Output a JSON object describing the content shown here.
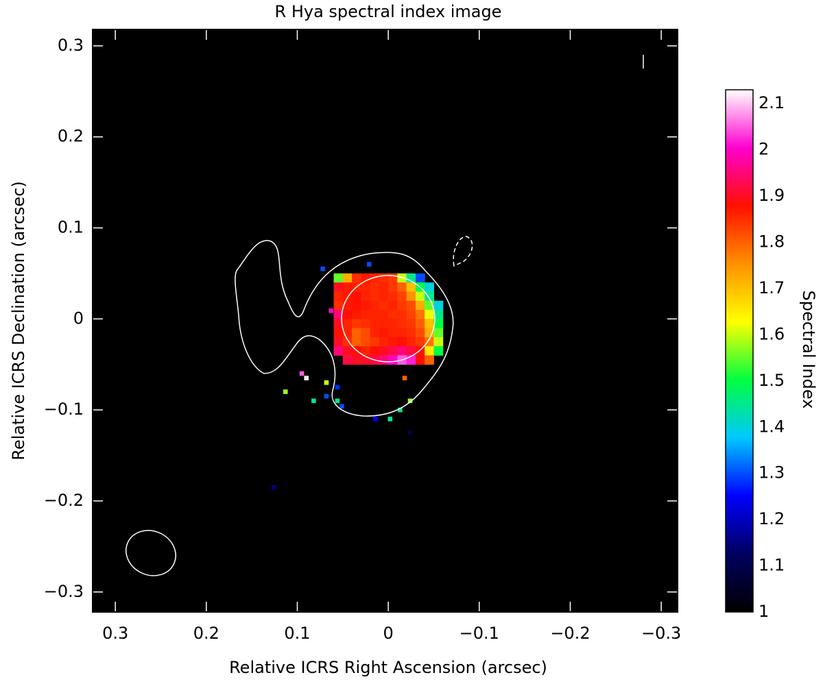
{
  "chart_data": {
    "type": "heatmap",
    "title": "R Hya spectral index image",
    "xlabel": "Relative ICRS Right Ascension (arcsec)",
    "ylabel": "Relative ICRS Declination (arcsec)",
    "colorbar_label": "Spectral Index",
    "xlim": [
      0.325,
      -0.318
    ],
    "ylim": [
      -0.322,
      0.318
    ],
    "xticks": [
      0.3,
      0.2,
      0.1,
      0,
      {
        "value": -0.1,
        "label": "−0.1"
      },
      {
        "value": -0.2,
        "label": "−0.2"
      },
      {
        "value": -0.3,
        "label": "−0.3"
      }
    ],
    "yticks": [
      {
        "value": -0.3,
        "label": "−0.3"
      },
      {
        "value": -0.2,
        "label": "−0.2"
      },
      {
        "value": -0.1,
        "label": "−0.1"
      },
      0,
      0.1,
      0.2,
      0.3
    ],
    "zlim": [
      1,
      2.13
    ],
    "zticks": [
      1,
      1.1,
      1.2,
      1.3,
      1.4,
      1.5,
      1.6,
      1.7,
      1.8,
      1.9,
      2,
      2.1
    ],
    "colors": [
      "#000000",
      "#000060",
      "#0000ff",
      "#00c8ff",
      "#00ff40",
      "#ffff00",
      "#ff9000",
      "#ff1000",
      "#ff00d0",
      "#ffffff"
    ],
    "x": [
      0.055,
      0.045,
      0.035,
      0.025,
      0.015,
      0.005,
      -0.005,
      -0.015,
      -0.025,
      -0.035,
      -0.045,
      -0.055
    ],
    "y": [
      0.045,
      0.035,
      0.025,
      0.015,
      0.005,
      -0.005,
      -0.015,
      -0.025,
      -0.035,
      -0.045
    ],
    "values": [
      [
        1.55,
        1.72,
        1.85,
        1.87,
        1.86,
        1.85,
        1.84,
        1.6,
        1.45,
        1.3,
        null,
        null
      ],
      [
        1.9,
        1.87,
        1.86,
        1.86,
        1.85,
        1.86,
        1.84,
        1.8,
        1.7,
        1.5,
        1.4,
        null
      ],
      [
        1.86,
        1.87,
        1.88,
        1.86,
        1.85,
        1.86,
        1.85,
        1.83,
        1.75,
        1.6,
        1.45,
        null
      ],
      [
        1.85,
        1.87,
        1.88,
        1.87,
        1.86,
        1.85,
        1.86,
        1.84,
        1.82,
        1.72,
        1.55,
        1.4
      ],
      [
        1.95,
        1.88,
        1.87,
        1.86,
        1.86,
        1.86,
        1.85,
        1.85,
        1.83,
        1.78,
        1.62,
        1.45
      ],
      [
        1.9,
        1.86,
        1.84,
        1.85,
        1.86,
        1.86,
        1.86,
        1.85,
        1.84,
        1.8,
        1.7,
        1.5
      ],
      [
        1.88,
        1.86,
        1.8,
        1.82,
        1.86,
        1.87,
        1.86,
        1.86,
        1.85,
        1.82,
        1.72,
        1.55
      ],
      [
        1.9,
        1.85,
        1.8,
        1.82,
        1.84,
        1.86,
        1.87,
        1.88,
        1.86,
        1.84,
        1.78,
        1.6
      ],
      [
        1.95,
        1.9,
        1.88,
        1.86,
        1.88,
        1.9,
        1.92,
        1.95,
        1.92,
        1.88,
        1.65,
        1.5
      ],
      [
        null,
        1.92,
        1.9,
        1.9,
        1.92,
        1.95,
        2.0,
        2.05,
        2.02,
        1.88,
        1.8,
        null
      ]
    ],
    "points": {
      "x": [
        0.095,
        0.09,
        0.068,
        0.113,
        0.082,
        0.068,
        0.056,
        0.056,
        0.051,
        0.014,
        -0.002,
        -0.013,
        -0.024,
        -0.024,
        0.126,
        -0.018,
        0.072,
        0.021,
        0.063
      ],
      "y": [
        -0.06,
        -0.065,
        -0.07,
        -0.08,
        -0.09,
        -0.085,
        -0.075,
        -0.09,
        -0.096,
        -0.11,
        -0.11,
        -0.1,
        -0.09,
        -0.125,
        -0.185,
        -0.065,
        0.055,
        0.06,
        0.009
      ],
      "values": [
        2.05,
        2.12,
        1.6,
        1.58,
        1.45,
        1.3,
        1.28,
        1.45,
        1.3,
        1.25,
        1.45,
        1.45,
        1.58,
        1.1,
        1.15,
        1.8,
        1.3,
        1.3,
        2.0
      ]
    }
  }
}
